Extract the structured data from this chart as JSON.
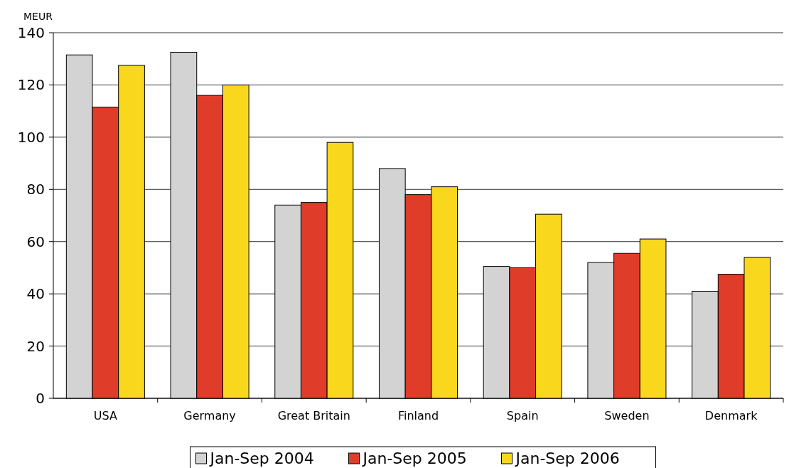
{
  "chart_data": {
    "type": "bar",
    "ylabel": "MEUR",
    "categories": [
      "USA",
      "Germany",
      "Great Britain",
      "Finland",
      "Spain",
      "Sweden",
      "Denmark"
    ],
    "series": [
      {
        "name": "Jan-Sep 2004",
        "color": "#d3d3d3",
        "values": [
          131.5,
          132.5,
          74,
          88,
          50.5,
          52,
          41
        ]
      },
      {
        "name": "Jan-Sep 2005",
        "color": "#e03c2a",
        "values": [
          111.5,
          116,
          75,
          78,
          50,
          55.5,
          47.5
        ]
      },
      {
        "name": "Jan-Sep 2006",
        "color": "#f9d71c",
        "values": [
          127.5,
          120,
          98,
          81,
          70.5,
          61,
          54
        ]
      }
    ],
    "ylim": [
      0,
      140
    ],
    "yticks": [
      0,
      20,
      40,
      60,
      80,
      100,
      120,
      140
    ],
    "grid": "y",
    "legend": "bottom"
  }
}
